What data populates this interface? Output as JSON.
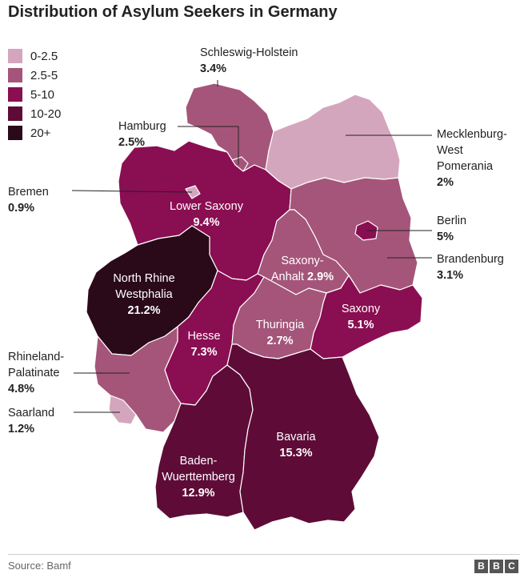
{
  "title": "Distribution of Asylum Seekers in Germany",
  "legend": [
    {
      "label": "0-2.5",
      "color": "#d4a6bd"
    },
    {
      "label": "2.5-5",
      "color": "#a5557a"
    },
    {
      "label": "5-10",
      "color": "#8a0e52"
    },
    {
      "label": "10-20",
      "color": "#5e0c37"
    },
    {
      "label": "20+",
      "color": "#2a0a18"
    }
  ],
  "states": {
    "schleswig_holstein": {
      "name": "Schleswig-Holstein",
      "value": "3.4%"
    },
    "hamburg": {
      "name": "Hamburg",
      "value": "2.5%"
    },
    "mecklenburg": {
      "name_line1": "Mecklenburg-",
      "name_line2": "West",
      "name_line3": "Pomerania",
      "value": "2%"
    },
    "bremen": {
      "name": "Bremen",
      "value": "0.9%"
    },
    "berlin": {
      "name": "Berlin",
      "value": "5%"
    },
    "brandenburg": {
      "name": "Brandenburg",
      "value": "3.1%"
    },
    "lower_saxony": {
      "name": "Lower Saxony",
      "value": "9.4%"
    },
    "saxony_anhalt": {
      "name_line1": "Saxony-",
      "name_line2": "Anhalt",
      "value": "2.9%"
    },
    "nrw": {
      "name_line1": "North Rhine",
      "name_line2": "Westphalia",
      "value": "21.2%"
    },
    "saxony": {
      "name": "Saxony",
      "value": "5.1%"
    },
    "hesse": {
      "name": "Hesse",
      "value": "7.3%"
    },
    "thuringia": {
      "name": "Thuringia",
      "value": "2.7%"
    },
    "rhineland": {
      "name_line1": "Rhineland-",
      "name_line2": "Palatinate",
      "value": "4.8%"
    },
    "saarland": {
      "name": "Saarland",
      "value": "1.2%"
    },
    "bavaria": {
      "name": "Bavaria",
      "value": "15.3%"
    },
    "baden": {
      "name_line1": "Baden-",
      "name_line2": "Wuerttemberg",
      "value": "12.9%"
    }
  },
  "footer": {
    "source": "Source: Bamf",
    "logo": [
      "B",
      "B",
      "C"
    ]
  }
}
